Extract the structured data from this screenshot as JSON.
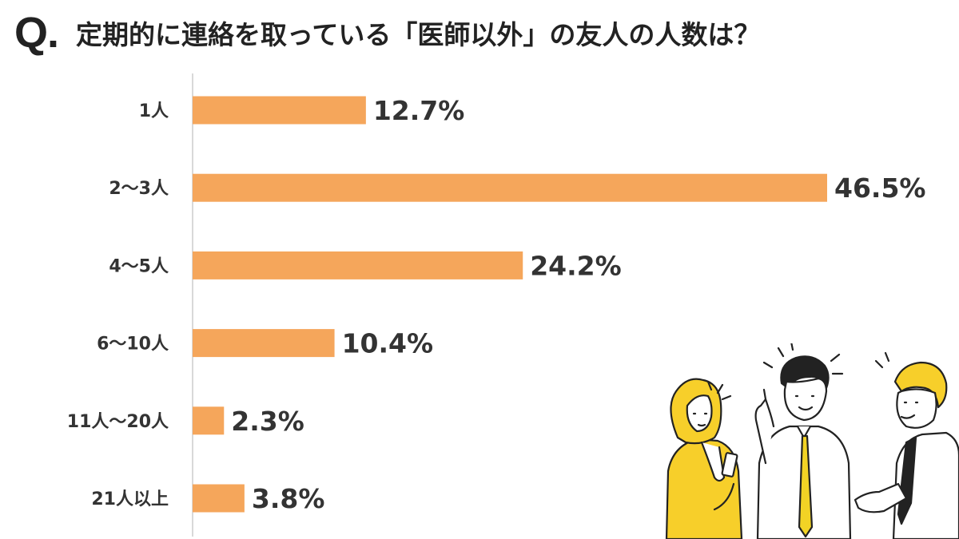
{
  "title": {
    "q_mark": "Q.",
    "question": "定期的に連絡を取っている「医師以外」の友人の人数は？"
  },
  "colors": {
    "bar": "#F5A65B",
    "axis": "#D9D9D9",
    "text": "#333333",
    "hair_yellow": "#F7CF2A",
    "shirt_yellow": "#F7CF2A",
    "tie_yellow": "#F2D325"
  },
  "chart_data": {
    "type": "bar",
    "orientation": "horizontal",
    "categories": [
      "1人",
      "2〜3人",
      "4〜5人",
      "6〜10人",
      "11人〜20人",
      "21人以上"
    ],
    "values": [
      12.7,
      46.5,
      24.2,
      10.4,
      2.3,
      3.8
    ],
    "value_labels": [
      "12.7%",
      "46.5%",
      "24.2%",
      "10.4%",
      "2.3%",
      "3.8%"
    ],
    "unit": "%",
    "xlim": [
      0,
      46.5
    ],
    "grid": false,
    "legend": "none",
    "xlabel": "",
    "ylabel": ""
  },
  "illustration": {
    "name": "three people chatting",
    "icons": [
      "woman-with-phone-icon",
      "man-pointing-icon",
      "man-gesturing-icon"
    ]
  }
}
